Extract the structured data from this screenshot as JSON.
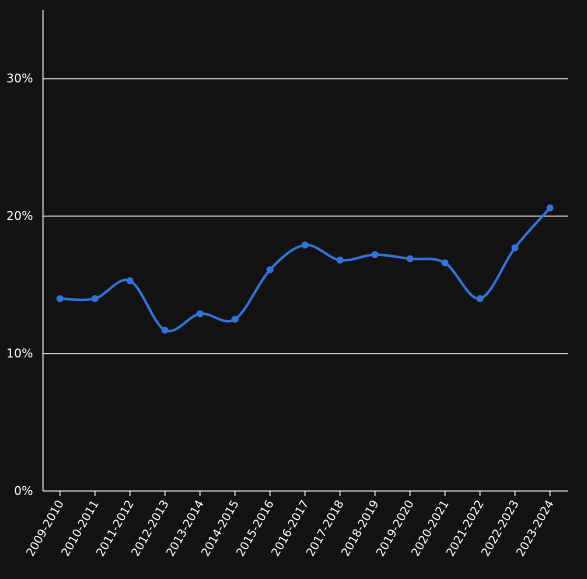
{
  "chart_data": {
    "type": "line",
    "title": "",
    "xlabel": "",
    "ylabel": "",
    "categories": [
      "2009-2010",
      "2010-2011",
      "2011-2012",
      "2012-2013",
      "2013-2014",
      "2014-2015",
      "2015-2016",
      "2016-2017",
      "2017-2018",
      "2018-2019",
      "2019-2020",
      "2020-2021",
      "2021-2022",
      "2022-2023",
      "2023-2024"
    ],
    "series": [
      {
        "values": [
          14.0,
          14.0,
          15.3,
          11.7,
          12.9,
          12.5,
          16.1,
          17.9,
          16.8,
          17.2,
          16.9,
          16.6,
          14.0,
          17.7,
          20.6
        ],
        "color": "#3274d9"
      }
    ],
    "ylim": [
      0,
      35
    ],
    "yticks": [
      0,
      10,
      20,
      30
    ],
    "ytick_labels": [
      "0%",
      "10%",
      "20%",
      "30%"
    ],
    "grid": true,
    "background": "#121212",
    "gridline_color": "#ffffff",
    "text_color": "#ffffff"
  }
}
